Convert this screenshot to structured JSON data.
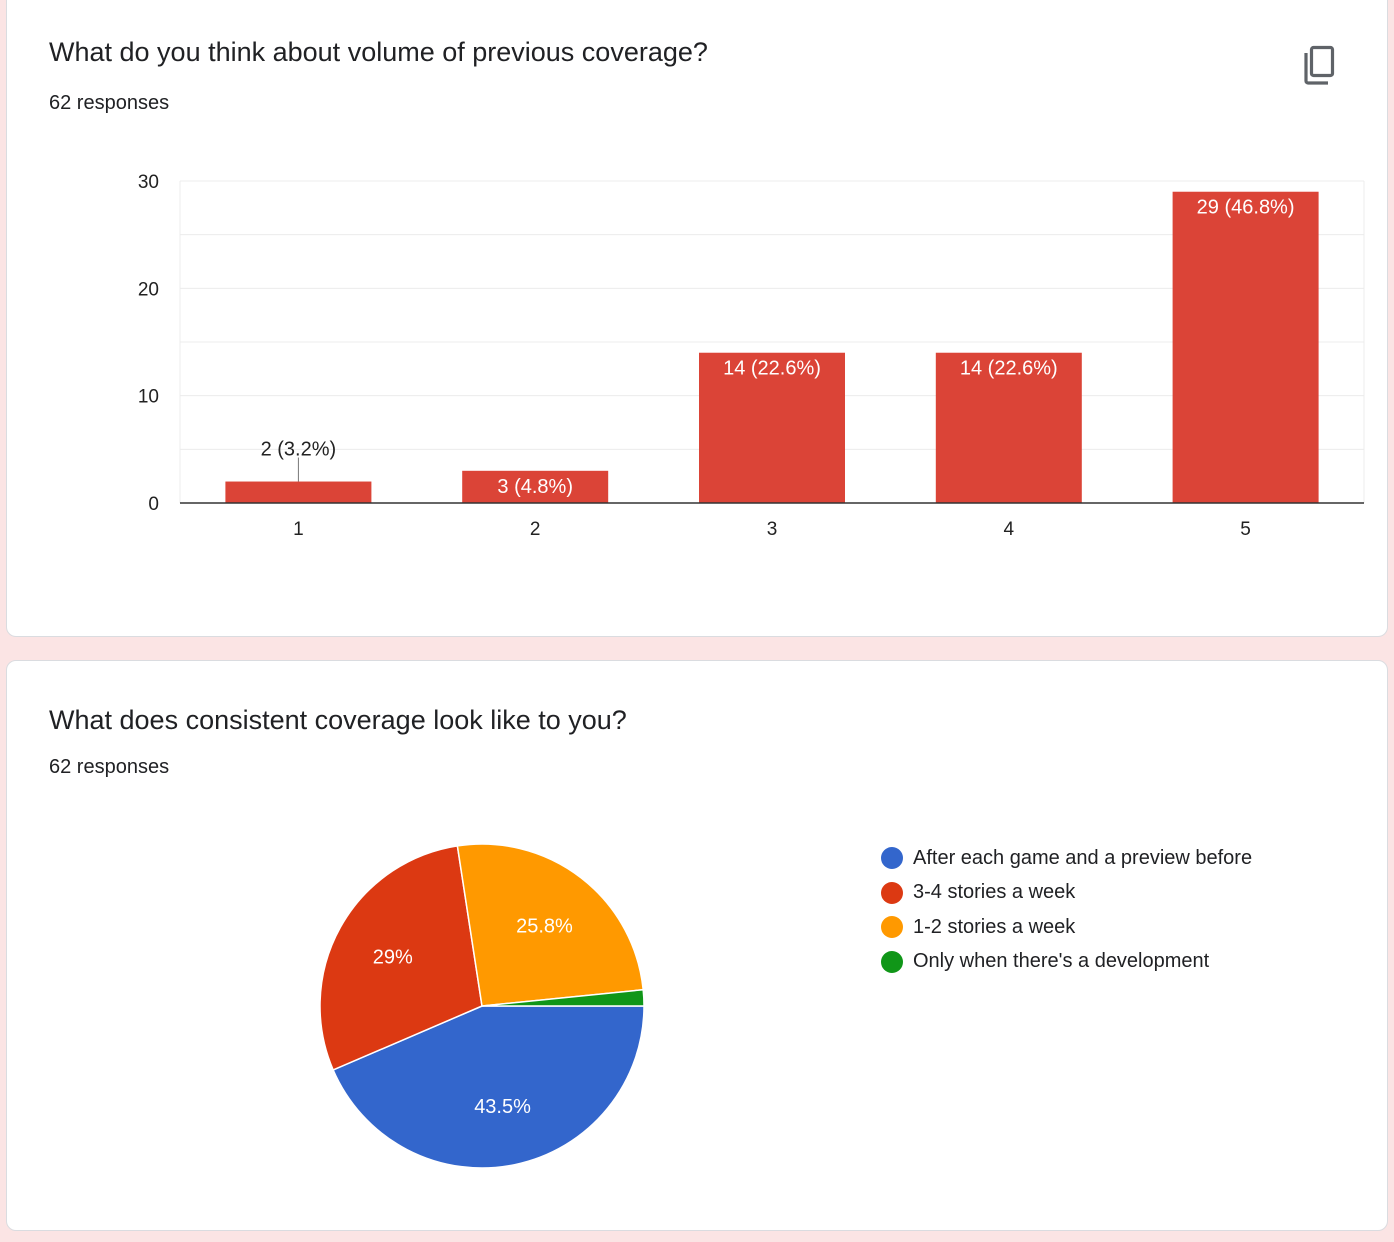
{
  "colors": {
    "bar": "#db4437",
    "blue": "#3366cc",
    "red": "#dc3912",
    "orange": "#ff9900",
    "green": "#109618",
    "grid": "#e8e8e8",
    "axis": "#333333"
  },
  "question1": {
    "title": "What do you think about volume of previous coverage?",
    "responses": "62 responses",
    "copy_icon": "copy-icon"
  },
  "question2": {
    "title": "What does consistent coverage look like to you?",
    "responses": "62 responses"
  },
  "chart_data": [
    {
      "type": "bar",
      "categories": [
        "1",
        "2",
        "3",
        "4",
        "5"
      ],
      "values": [
        2,
        3,
        14,
        14,
        29
      ],
      "data_labels": [
        "2 (3.2%)",
        "3 (4.8%)",
        "14 (22.6%)",
        "14 (22.6%)",
        "29 (46.8%)"
      ],
      "y_ticks": [
        0,
        10,
        20,
        30
      ],
      "ylim": [
        0,
        30
      ],
      "grid": true,
      "color": "#db4437"
    },
    {
      "type": "pie",
      "labels": [
        "After each game and a preview before",
        "3-4 stories a week",
        "1-2 stories a week",
        "Only when there's a development"
      ],
      "values": [
        43.5,
        29,
        25.8,
        1.6
      ],
      "slice_labels": [
        "43.5%",
        "29%",
        "25.8%",
        ""
      ],
      "colors": [
        "#3366cc",
        "#dc3912",
        "#ff9900",
        "#109618"
      ],
      "legend_position": "right"
    }
  ]
}
